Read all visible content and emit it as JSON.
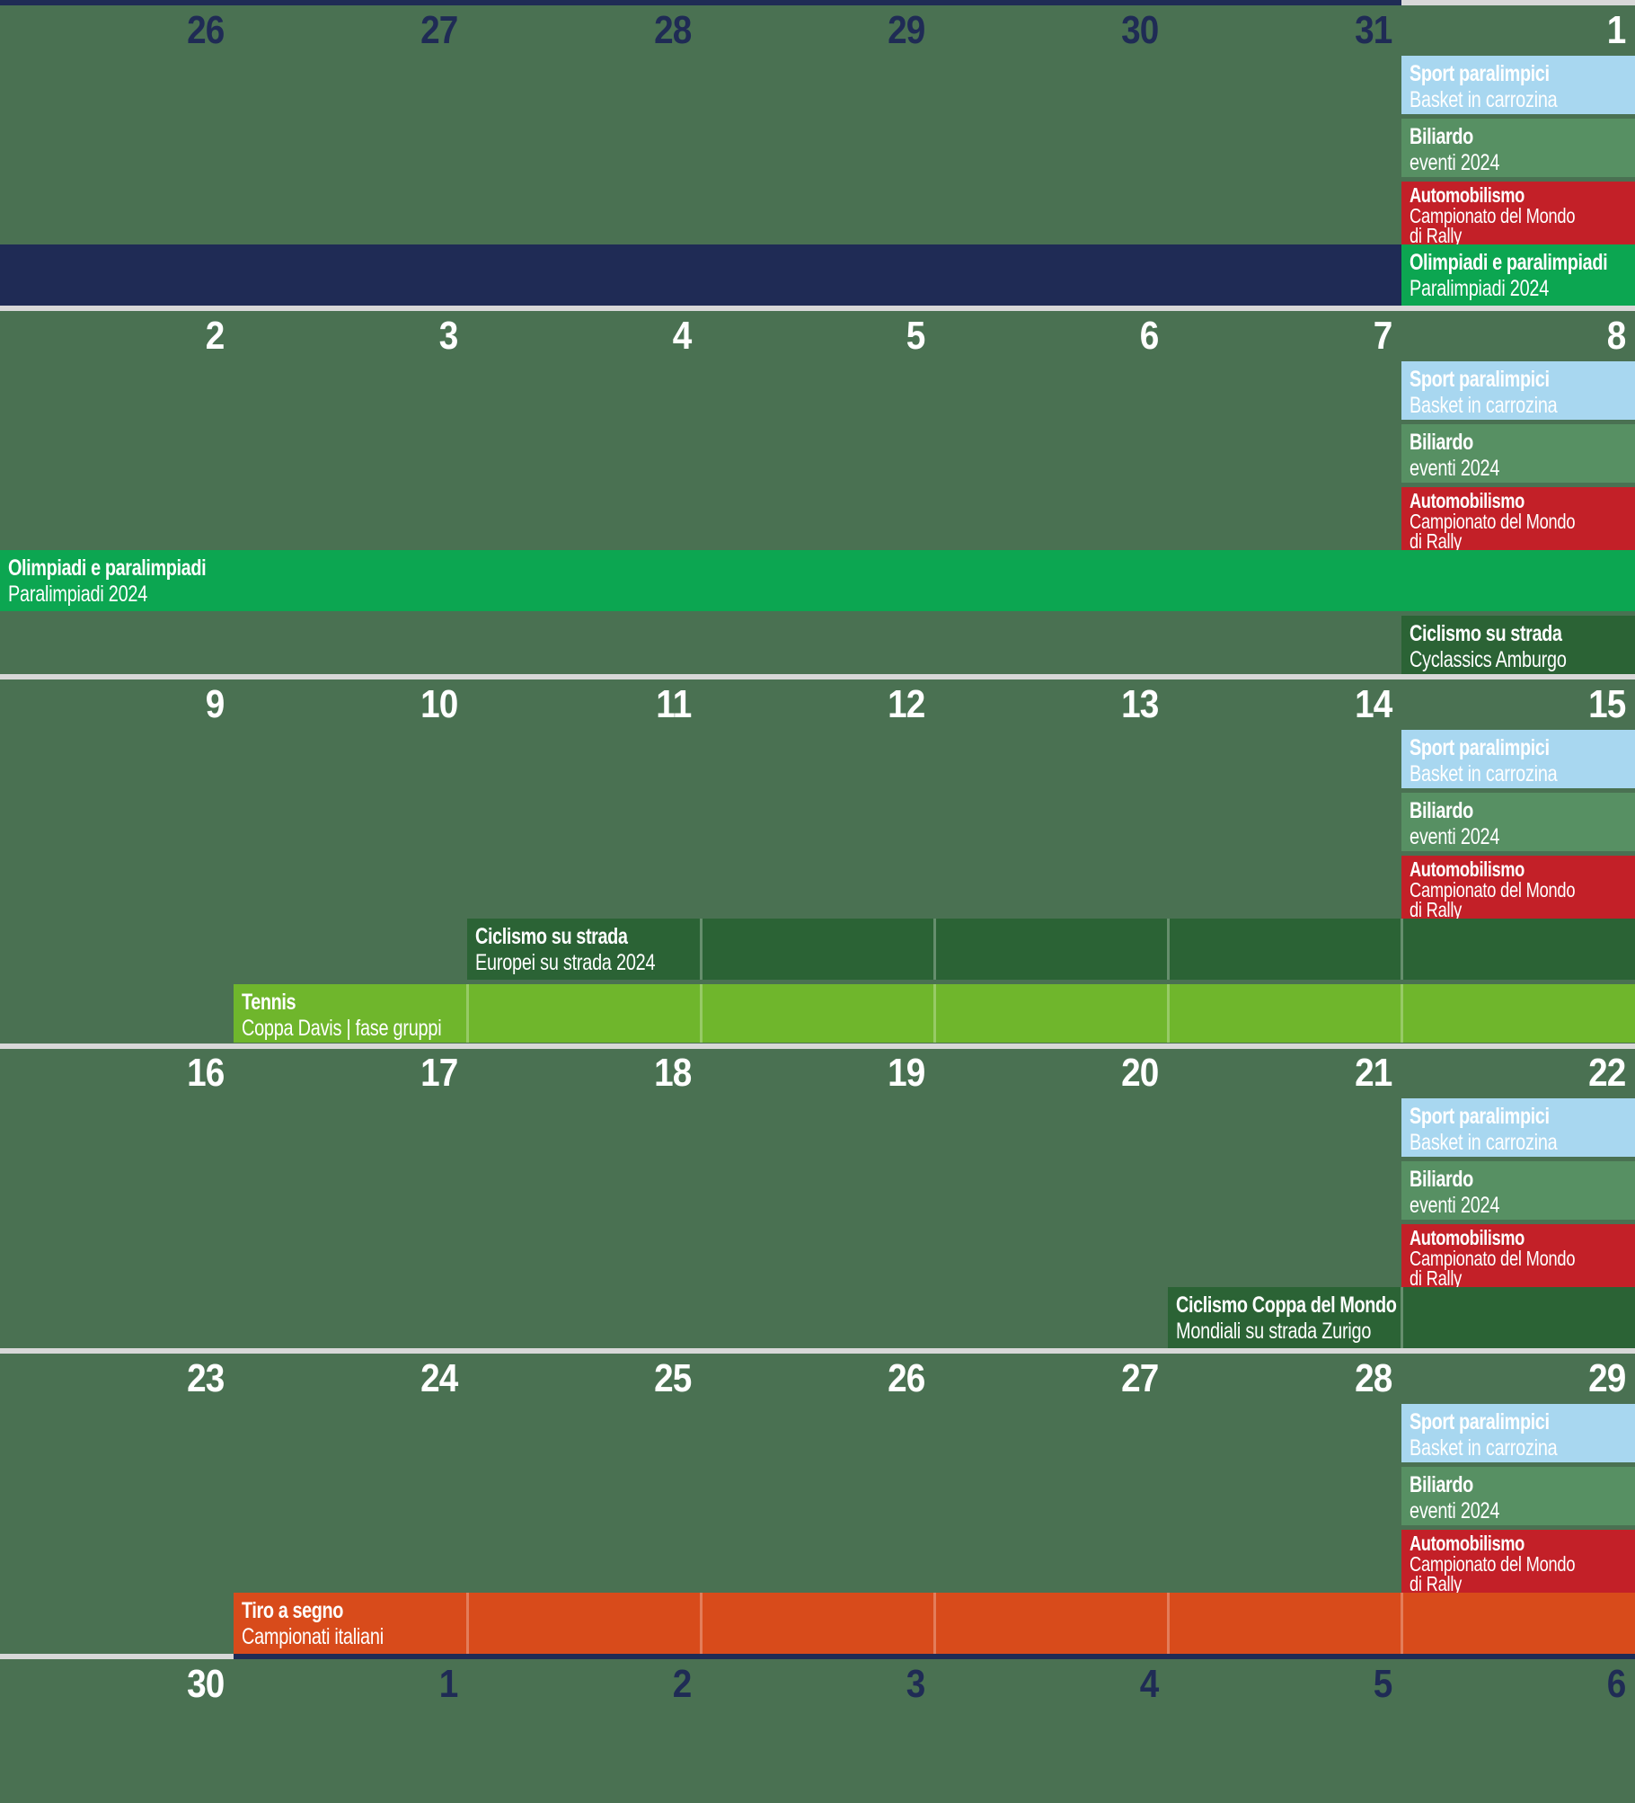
{
  "calendar": {
    "colors": {
      "background": "#4a7152",
      "navy": "#1f2b55",
      "separator": "#d8d8d8",
      "event_lightblue": "#a8d7f0",
      "event_sage": "#579063",
      "event_red": "#c32028",
      "event_green": "#0ca651",
      "event_darkgreen": "#2b6335",
      "event_lime": "#6fb62c",
      "event_orange": "#d84b1b",
      "day_current_month": "#ffffff",
      "day_adjacent_month": "#1f2b55",
      "bar_divider": "rgba(255,255,255,0.28)"
    },
    "top_strip": [
      {
        "col_start": 0,
        "col_span": 6,
        "color": "navy"
      },
      {
        "col_start": 6,
        "col_span": 1,
        "color": "separator"
      }
    ]
  },
  "weeks": [
    {
      "days": [
        {
          "label": "26",
          "adjacent": true
        },
        {
          "label": "27",
          "adjacent": true
        },
        {
          "label": "28",
          "adjacent": true
        },
        {
          "label": "29",
          "adjacent": true
        },
        {
          "label": "30",
          "adjacent": true
        },
        {
          "label": "31",
          "adjacent": true
        },
        {
          "label": "1",
          "adjacent": false
        }
      ],
      "events": [
        {
          "slot": 0,
          "col_start": 6,
          "col_span": 1,
          "color": "event_lightblue",
          "title": "Sport paralimpici",
          "subtitle": [
            "Basket in carrozina"
          ],
          "dividers": false
        },
        {
          "slot": 1,
          "col_start": 6,
          "col_span": 1,
          "color": "event_sage",
          "title": "Biliardo",
          "subtitle": [
            "eventi 2024"
          ],
          "dividers": false
        },
        {
          "slot": 2,
          "col_start": 6,
          "col_span": 1,
          "color": "event_red",
          "title": "Automobilismo",
          "subtitle": [
            "Campionato del Mondo",
            "di Rally"
          ],
          "dividers": false
        },
        {
          "slot": 3,
          "col_start": 0,
          "col_span": 6,
          "color": "navy",
          "title": "",
          "subtitle": [],
          "dividers": false
        },
        {
          "slot": 3,
          "col_start": 6,
          "col_span": 1,
          "color": "event_green",
          "title": "Olimpiadi e paralimpiadi",
          "subtitle": [
            "Paralimpiadi 2024"
          ],
          "dividers": false
        }
      ],
      "separator": [
        {
          "col_start": 0,
          "col_span": 7,
          "color": "separator"
        }
      ]
    },
    {
      "days": [
        {
          "label": "2",
          "adjacent": false
        },
        {
          "label": "3",
          "adjacent": false
        },
        {
          "label": "4",
          "adjacent": false
        },
        {
          "label": "5",
          "adjacent": false
        },
        {
          "label": "6",
          "adjacent": false
        },
        {
          "label": "7",
          "adjacent": false
        },
        {
          "label": "8",
          "adjacent": false
        }
      ],
      "events": [
        {
          "slot": 0,
          "col_start": 6,
          "col_span": 1,
          "color": "event_lightblue",
          "title": "Sport paralimpici",
          "subtitle": [
            "Basket in carrozina"
          ],
          "dividers": false
        },
        {
          "slot": 1,
          "col_start": 6,
          "col_span": 1,
          "color": "event_sage",
          "title": "Biliardo",
          "subtitle": [
            "eventi 2024"
          ],
          "dividers": false
        },
        {
          "slot": 2,
          "col_start": 6,
          "col_span": 1,
          "color": "event_red",
          "title": "Automobilismo",
          "subtitle": [
            "Campionato del Mondo",
            "di Rally"
          ],
          "dividers": false
        },
        {
          "slot": 3,
          "col_start": 0,
          "col_span": 7,
          "color": "event_green",
          "title": "Olimpiadi e paralimpiadi",
          "subtitle": [
            "Paralimpiadi 2024"
          ],
          "dividers": false
        },
        {
          "slot": 4,
          "col_start": 6,
          "col_span": 1,
          "color": "event_darkgreen",
          "title": "Ciclismo su strada",
          "subtitle": [
            "Cyclassics Amburgo"
          ],
          "dividers": false
        }
      ],
      "separator": [
        {
          "col_start": 0,
          "col_span": 7,
          "color": "separator"
        }
      ]
    },
    {
      "days": [
        {
          "label": "9",
          "adjacent": false
        },
        {
          "label": "10",
          "adjacent": false
        },
        {
          "label": "11",
          "adjacent": false
        },
        {
          "label": "12",
          "adjacent": false
        },
        {
          "label": "13",
          "adjacent": false
        },
        {
          "label": "14",
          "adjacent": false
        },
        {
          "label": "15",
          "adjacent": false
        }
      ],
      "events": [
        {
          "slot": 0,
          "col_start": 6,
          "col_span": 1,
          "color": "event_lightblue",
          "title": "Sport paralimpici",
          "subtitle": [
            "Basket in carrozina"
          ],
          "dividers": false
        },
        {
          "slot": 1,
          "col_start": 6,
          "col_span": 1,
          "color": "event_sage",
          "title": "Biliardo",
          "subtitle": [
            "eventi 2024"
          ],
          "dividers": false
        },
        {
          "slot": 2,
          "col_start": 6,
          "col_span": 1,
          "color": "event_red",
          "title": "Automobilismo",
          "subtitle": [
            "Campionato del Mondo",
            "di Rally"
          ],
          "dividers": false
        },
        {
          "slot": 3,
          "col_start": 2,
          "col_span": 5,
          "color": "event_darkgreen",
          "title": "Ciclismo su strada",
          "subtitle": [
            "Europei su strada 2024"
          ],
          "dividers": true
        },
        {
          "slot": 4,
          "col_start": 1,
          "col_span": 6,
          "color": "event_lime",
          "title": "Tennis",
          "subtitle": [
            "Coppa Davis | fase gruppi"
          ],
          "dividers": true
        }
      ],
      "separator": [
        {
          "col_start": 0,
          "col_span": 7,
          "color": "separator"
        }
      ]
    },
    {
      "days": [
        {
          "label": "16",
          "adjacent": false
        },
        {
          "label": "17",
          "adjacent": false
        },
        {
          "label": "18",
          "adjacent": false
        },
        {
          "label": "19",
          "adjacent": false
        },
        {
          "label": "20",
          "adjacent": false
        },
        {
          "label": "21",
          "adjacent": false
        },
        {
          "label": "22",
          "adjacent": false
        }
      ],
      "events": [
        {
          "slot": 0,
          "col_start": 6,
          "col_span": 1,
          "color": "event_lightblue",
          "title": "Sport paralimpici",
          "subtitle": [
            "Basket in carrozina"
          ],
          "dividers": false
        },
        {
          "slot": 1,
          "col_start": 6,
          "col_span": 1,
          "color": "event_sage",
          "title": "Biliardo",
          "subtitle": [
            "eventi 2024"
          ],
          "dividers": false
        },
        {
          "slot": 2,
          "col_start": 6,
          "col_span": 1,
          "color": "event_red",
          "title": "Automobilismo",
          "subtitle": [
            "Campionato del Mondo",
            "di Rally"
          ],
          "dividers": false
        },
        {
          "slot": 3,
          "col_start": 5,
          "col_span": 2,
          "color": "event_darkgreen",
          "title": "Ciclismo Coppa del Mondo",
          "subtitle": [
            "Mondiali su strada Zurigo"
          ],
          "dividers": true
        }
      ],
      "separator": [
        {
          "col_start": 0,
          "col_span": 7,
          "color": "separator"
        }
      ]
    },
    {
      "days": [
        {
          "label": "23",
          "adjacent": false
        },
        {
          "label": "24",
          "adjacent": false
        },
        {
          "label": "25",
          "adjacent": false
        },
        {
          "label": "26",
          "adjacent": false
        },
        {
          "label": "27",
          "adjacent": false
        },
        {
          "label": "28",
          "adjacent": false
        },
        {
          "label": "29",
          "adjacent": false
        }
      ],
      "events": [
        {
          "slot": 0,
          "col_start": 6,
          "col_span": 1,
          "color": "event_lightblue",
          "title": "Sport paralimpici",
          "subtitle": [
            "Basket in carrozina"
          ],
          "dividers": false
        },
        {
          "slot": 1,
          "col_start": 6,
          "col_span": 1,
          "color": "event_sage",
          "title": "Biliardo",
          "subtitle": [
            "eventi 2024"
          ],
          "dividers": false
        },
        {
          "slot": 2,
          "col_start": 6,
          "col_span": 1,
          "color": "event_red",
          "title": "Automobilismo",
          "subtitle": [
            "Campionato del Mondo",
            "di Rally"
          ],
          "dividers": false
        },
        {
          "slot": 3,
          "col_start": 1,
          "col_span": 6,
          "color": "event_orange",
          "title": "Tiro a segno",
          "subtitle": [
            "Campionati italiani"
          ],
          "dividers": true
        }
      ],
      "separator": [
        {
          "col_start": 0,
          "col_span": 1,
          "color": "separator"
        },
        {
          "col_start": 1,
          "col_span": 6,
          "color": "navy"
        }
      ]
    },
    {
      "days": [
        {
          "label": "30",
          "adjacent": false
        },
        {
          "label": "1",
          "adjacent": true
        },
        {
          "label": "2",
          "adjacent": true
        },
        {
          "label": "3",
          "adjacent": true
        },
        {
          "label": "4",
          "adjacent": true
        },
        {
          "label": "5",
          "adjacent": true
        },
        {
          "label": "6",
          "adjacent": true
        }
      ],
      "events": [],
      "separator": []
    }
  ]
}
